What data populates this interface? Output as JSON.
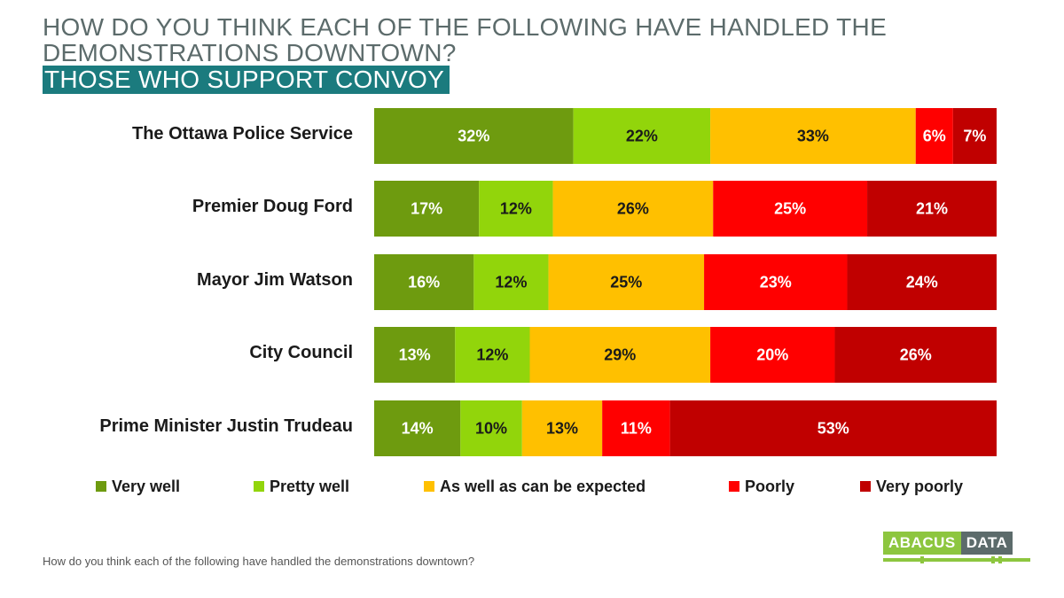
{
  "title": "HOW DO YOU THINK EACH OF THE FOLLOWING HAVE HANDLED THE DEMONSTRATIONS DOWNTOWN?",
  "subtitle": "THOSE WHO SUPPORT CONVOY",
  "footnote": "How do you think each of the following have handled the demonstrations downtown?",
  "logo": {
    "part1": "ABACUS",
    "part2": "DATA"
  },
  "colors": {
    "title": "#5c6b6b",
    "subtitle_bg": "#1b7b7e",
    "very_well": "#6e9b0f",
    "pretty_well": "#92d50b",
    "as_expected": "#ffc000",
    "poorly": "#ff0000",
    "very_poorly": "#c00000"
  },
  "chart_data": {
    "type": "bar",
    "orientation": "horizontal",
    "stacked": true,
    "categories": [
      "The Ottawa Police Service",
      "Premier Doug Ford",
      "Mayor Jim Watson",
      "City Council",
      "Prime Minister Justin Trudeau"
    ],
    "series": [
      {
        "name": "Very well",
        "color": "#6e9b0f",
        "label_color": "#ffffff",
        "values": [
          32,
          17,
          16,
          13,
          14
        ]
      },
      {
        "name": "Pretty well",
        "color": "#92d50b",
        "label_color": "#1a1a1a",
        "values": [
          22,
          12,
          12,
          12,
          10
        ]
      },
      {
        "name": "As well as can be expected",
        "color": "#ffc000",
        "label_color": "#1a1a1a",
        "values": [
          33,
          26,
          25,
          29,
          13
        ]
      },
      {
        "name": "Poorly",
        "color": "#ff0000",
        "label_color": "#ffffff",
        "values": [
          6,
          25,
          23,
          20,
          11
        ]
      },
      {
        "name": "Very poorly",
        "color": "#c00000",
        "label_color": "#ffffff",
        "values": [
          7,
          21,
          24,
          26,
          53
        ]
      }
    ],
    "value_suffix": "%",
    "legend_position": "bottom",
    "grid": false
  }
}
